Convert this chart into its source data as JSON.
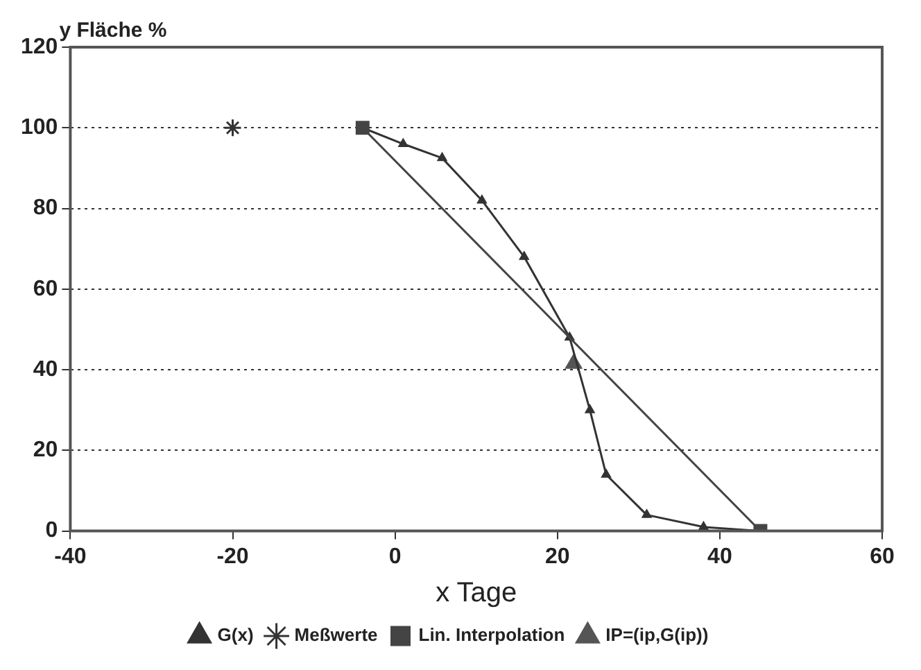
{
  "chart_data": {
    "type": "line",
    "xlabel": "x Tage",
    "ylabel": "y Fläche %",
    "xlim": [
      -40,
      60
    ],
    "xticks": [
      -40,
      -20,
      0,
      20,
      40,
      60
    ],
    "ylim": [
      0,
      120
    ],
    "yticks": [
      0,
      20,
      40,
      60,
      80,
      100,
      120
    ],
    "grid": "y",
    "legend": "bottom",
    "series": [
      {
        "name": "G(x)",
        "marker": "triangle",
        "color": "#333333",
        "x": [
          -4,
          1,
          5.8,
          10.7,
          15.9,
          21.5,
          24,
          26,
          31,
          38,
          45
        ],
        "values": [
          100,
          96,
          92.5,
          82,
          68,
          48,
          30,
          14,
          4,
          1,
          0
        ]
      },
      {
        "name": "Meßwerte",
        "type": "scatter",
        "marker": "cross",
        "color": "#333333",
        "x": [
          -20
        ],
        "values": [
          100
        ]
      },
      {
        "name": "Lin. Interpolation",
        "marker": "square",
        "color": "#444444",
        "x": [
          -4,
          45
        ],
        "values": [
          100,
          0
        ]
      },
      {
        "name": "IP=(ip,G(ip))",
        "type": "scatter",
        "marker": "triangle",
        "color": "#555555",
        "x": [
          22
        ],
        "values": [
          41.5
        ]
      }
    ]
  }
}
